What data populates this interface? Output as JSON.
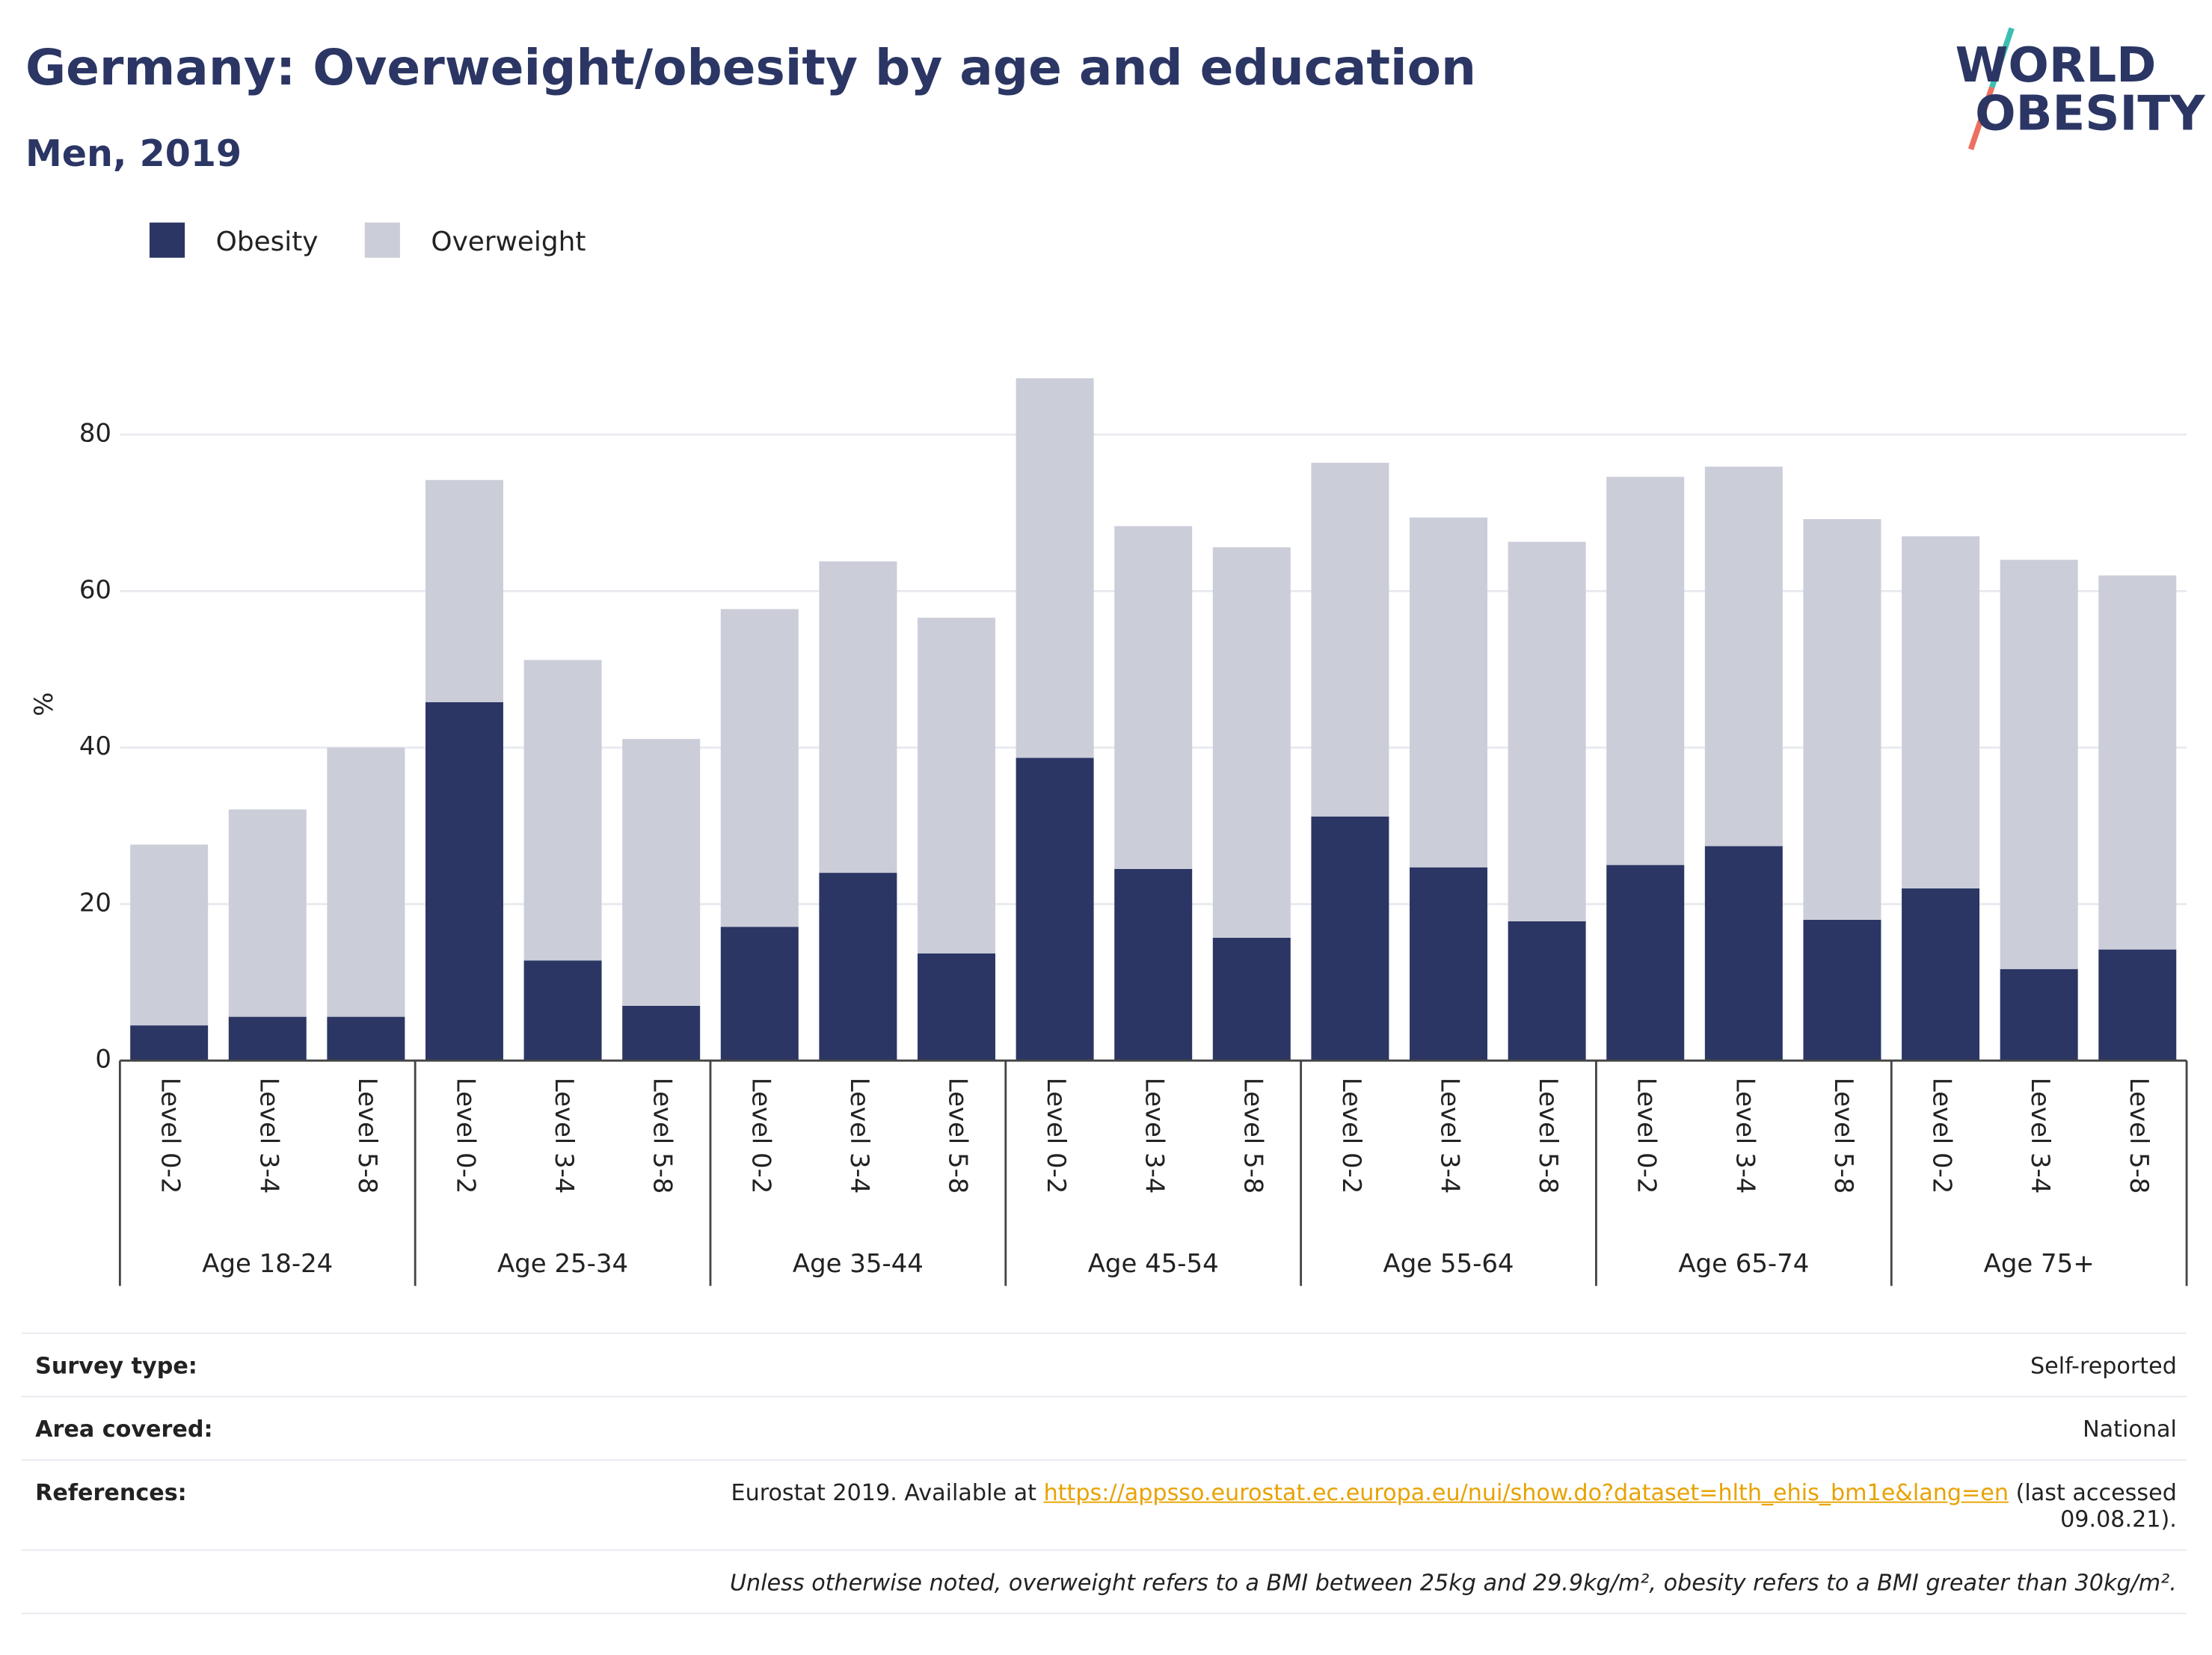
{
  "chart_data": {
    "type": "stacked_bar",
    "title": "Germany: Overweight/obesity by age and education",
    "subtitle": "Men, 2019",
    "y_label": "%",
    "categories": [
      "Level 0-2",
      "Level 3-4",
      "Level 5-8",
      "Level 0-2",
      "Level 3-4",
      "Level 5-8",
      "Level 0-2",
      "Level 3-4",
      "Level 5-8",
      "Level 0-2",
      "Level 3-4",
      "Level 5-8",
      "Level 0-2",
      "Level 3-4",
      "Level 5-8",
      "Level 0-2",
      "Level 3-4",
      "Level 5-8",
      "Level 0-2",
      "Level 3-4",
      "Level 5-8"
    ],
    "groups": [
      "Age 18-24",
      "Age 25-34",
      "Age 35-44",
      "Age 45-54",
      "Age 55-64",
      "Age 65-74",
      "Age 75+"
    ],
    "series": [
      {
        "name": "Obesity",
        "color": "#2b3664",
        "values": [
          4.5,
          5.6,
          5.6,
          45.8,
          12.8,
          7.0,
          17.1,
          24.0,
          13.7,
          38.7,
          24.5,
          15.7,
          31.2,
          24.7,
          17.8,
          25.0,
          27.4,
          18.0,
          22.0,
          11.7,
          14.2
        ]
      },
      {
        "name": "Overweight",
        "color": "#cbcdd9",
        "values": [
          23.1,
          26.5,
          34.4,
          28.4,
          38.4,
          34.1,
          40.6,
          39.8,
          42.9,
          48.5,
          43.8,
          49.9,
          45.2,
          44.7,
          48.5,
          49.6,
          48.5,
          51.2,
          45.0,
          52.3,
          47.8
        ]
      }
    ],
    "ylim": [
      0,
      90
    ],
    "yticks": [
      0,
      20,
      40,
      60,
      80
    ],
    "grid": true
  },
  "logo": [
    "WORLD",
    "OBESITY"
  ],
  "footer": {
    "rows": [
      {
        "label": "Survey type:",
        "value": "Self-reported"
      },
      {
        "label": "Area covered:",
        "value": "National"
      }
    ],
    "references": {
      "label": "References:",
      "text": "Eurostat 2019. Available at",
      "link": "https://appsso.eurostat.ec.europa.eu/nui/show.do?dataset=hlth_ehis_bm1e&lang=en",
      "after": "(last accessed 09.08.21)."
    },
    "note": "Unless otherwise noted, overweight refers to a BMI between 25kg and 29.9kg/m², obesity refers to a BMI greater than 30kg/m²."
  }
}
